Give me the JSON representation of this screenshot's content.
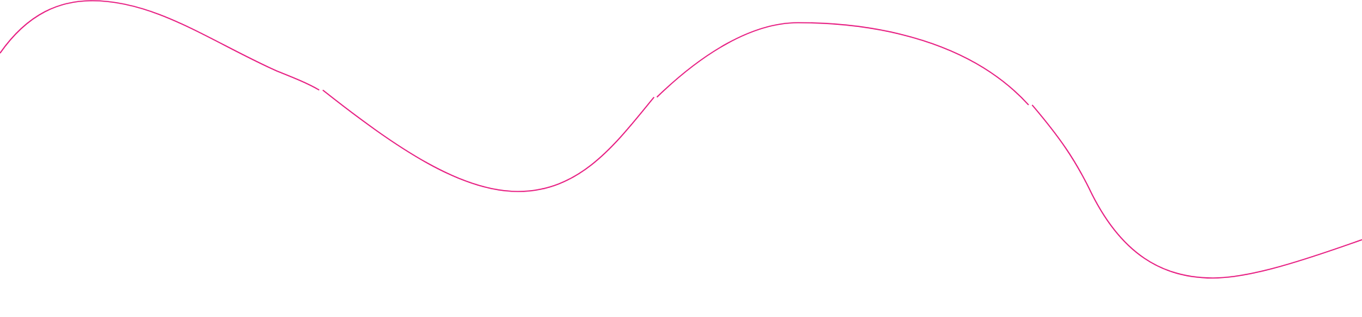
{
  "decoration": {
    "type": "wavy-line",
    "stroke_color": "#e6157d",
    "background_color": "#ffffff"
  }
}
